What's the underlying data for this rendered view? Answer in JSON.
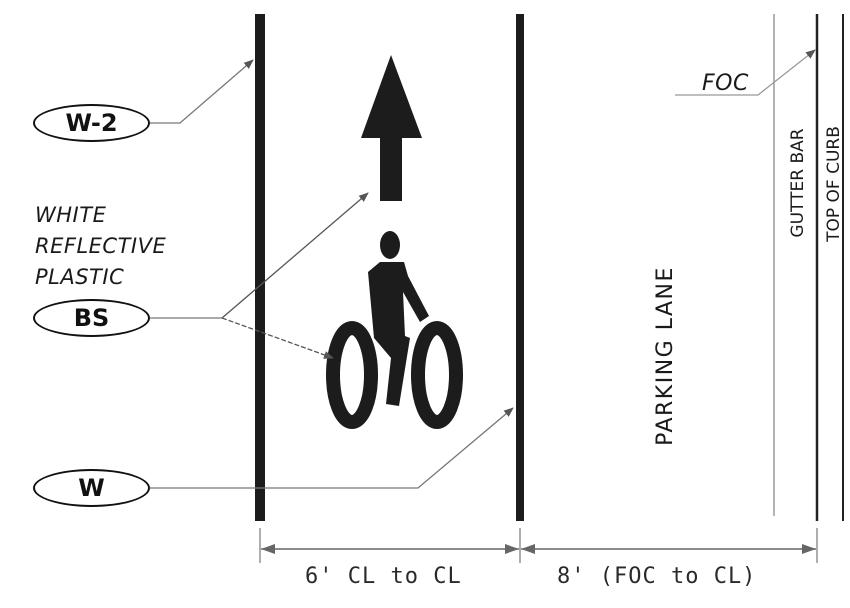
{
  "callouts": {
    "w2": "W-2",
    "bs": "BS",
    "w": "W"
  },
  "notes": {
    "material_line1": "WHITE",
    "material_line2": "REFLECTIVE",
    "material_line3": "PLASTIC",
    "foc": "FOC",
    "parking_lane": "PARKING LANE",
    "gutter_bar": "GUTTER BAR",
    "top_of_curb": "TOP OF CURB"
  },
  "dimensions": {
    "bike_lane": "6' CL to CL",
    "parking": "8' (FOC to CL)"
  },
  "colors": {
    "stripe": "#1c1c1c",
    "leader": "#555555",
    "ink": "#111111"
  },
  "icons": [
    "arrow-up-icon",
    "bicycle-icon"
  ]
}
